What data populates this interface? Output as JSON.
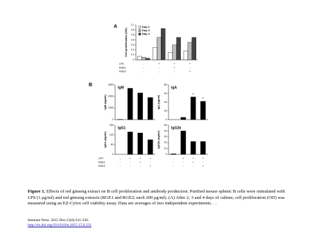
{
  "chart_data": [
    {
      "type": "bar",
      "panel": "A",
      "ylabel": "Cell proliferation (OD)",
      "categories": [
        null,
        null,
        null,
        null
      ],
      "series": [
        {
          "name": "Day 2",
          "color": "#ffffff",
          "values": [
            0.07,
            0.25,
            0.15,
            0.18
          ]
        },
        {
          "name": "Day 3",
          "color": "#bdbdbd",
          "values": [
            0.05,
            0.45,
            0.3,
            0.35
          ]
        },
        {
          "name": "Day 4",
          "color": "#444444",
          "values": [
            0.03,
            0.63,
            0.45,
            0.45
          ]
        }
      ],
      "ylim": [
        0,
        0.7
      ],
      "yticks": [
        0,
        0.1,
        0.2,
        0.3,
        0.4,
        0.5,
        0.6,
        0.7
      ],
      "condition_rows": [
        {
          "label": "LPS",
          "values": [
            "-",
            "+",
            "+",
            "+"
          ]
        },
        {
          "label": "RGE1",
          "values": [
            "-",
            "-",
            "+",
            "-"
          ]
        },
        {
          "label": "RGE2",
          "values": [
            "-",
            "-",
            "-",
            "+"
          ]
        }
      ]
    },
    {
      "type": "bar",
      "panel": "B",
      "title": "IgM",
      "ylabel": "IgM (ng/ml)",
      "categories": [
        null,
        null,
        null,
        null
      ],
      "values": [
        20,
        2700,
        2300,
        1900
      ],
      "color": "#000000",
      "ylim": [
        0,
        3000
      ],
      "yticks": [
        0,
        1000,
        2000,
        3000
      ]
    },
    {
      "type": "bar",
      "title": "IgA",
      "ylabel": "IgA (ng/ml)",
      "categories": [
        null,
        null,
        null,
        null
      ],
      "values": [
        0,
        5,
        52,
        42
      ],
      "markers": [
        null,
        null,
        "*",
        "*"
      ],
      "color": "#000000",
      "ylim": [
        0,
        80
      ],
      "yticks": [
        0,
        20,
        40,
        60,
        80
      ]
    },
    {
      "type": "bar",
      "title": "IgG1",
      "ylabel": "IgG1 (ng/ml)",
      "categories": [
        null,
        null,
        null,
        null
      ],
      "values": [
        0,
        115,
        110,
        75
      ],
      "color": "#000000",
      "ylim": [
        0,
        150
      ],
      "yticks": [
        0,
        50,
        100,
        150
      ],
      "condition_rows": [
        {
          "label": "LPS",
          "values": [
            "-",
            "+",
            "+",
            "+"
          ]
        },
        {
          "label": "RGE1",
          "values": [
            "-",
            "-",
            "+",
            "-"
          ]
        },
        {
          "label": "RGE2",
          "values": [
            "-",
            "-",
            "-",
            "+"
          ]
        }
      ]
    },
    {
      "type": "bar",
      "title": "IgG2b",
      "ylabel": "IgG2b (ng/ml)",
      "categories": [
        null,
        null,
        null,
        null
      ],
      "values": [
        1,
        40,
        22,
        22
      ],
      "color": "#000000",
      "ylim": [
        0,
        50
      ],
      "yticks": [
        0,
        10,
        20,
        30,
        40,
        50
      ],
      "condition_rows": [
        {
          "values": [
            "-",
            "+",
            "+",
            "+"
          ]
        },
        {
          "values": [
            "-",
            "-",
            "+",
            "-"
          ]
        },
        {
          "values": [
            "-",
            "-",
            "-",
            "+"
          ]
        }
      ]
    }
  ],
  "caption": {
    "label": "Figure 1.",
    "text": "Effects of red ginseng extract on B cell proliferation and antibody production. Purified mouse splenic B cells were stimulated with LPS (1 μg/ml) and red ginseng extracts (RGE1 and RGE2; each 200 μg/ml). (A) After 2, 3 and 4 days of culture, cell proliferation (OD) was measured using an EZ-Cytox cell viability assay. Data are averages of two independent experiments. . ."
  },
  "citation": {
    "journal": "Immune Netw. 2015 Dec;15(6):331-336.",
    "doi": "http://dx.doi.org/10.4110/in.2015.15.6.331"
  }
}
